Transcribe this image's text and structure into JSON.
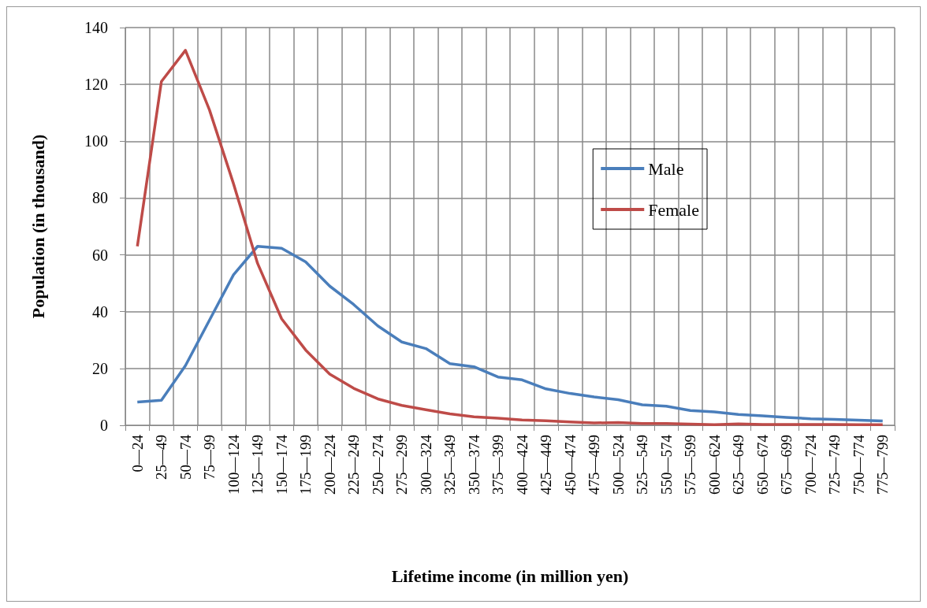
{
  "chart_data": {
    "type": "line",
    "xlabel": "Lifetime income (in million yen)",
    "ylabel": "Population (in thousand)",
    "categories": [
      "0—24",
      "25—49",
      "50—74",
      "75—99",
      "100—124",
      "125—149",
      "150—174",
      "175—199",
      "200—224",
      "225—249",
      "250—274",
      "275—299",
      "300—324",
      "325—349",
      "350—374",
      "375—399",
      "400—424",
      "425—449",
      "450—474",
      "475—499",
      "500—524",
      "525—549",
      "550—574",
      "575—599",
      "600—624",
      "625—649",
      "650—674",
      "675—699",
      "700—724",
      "725—749",
      "750—774",
      "775—799"
    ],
    "series": [
      {
        "name": "Male",
        "color": "#4a7ebb",
        "values": [
          8.2,
          8.8,
          21,
          37,
          53,
          63,
          62.3,
          57.5,
          49,
          42.5,
          35,
          29.3,
          27,
          21.7,
          20.6,
          17,
          16,
          12.8,
          11.2,
          10,
          9,
          7.2,
          6.7,
          5.2,
          4.7,
          3.8,
          3.3,
          2.8,
          2.3,
          2.1,
          1.8,
          1.5
        ]
      },
      {
        "name": "Female",
        "color": "#be4b48",
        "values": [
          63,
          121,
          132,
          111,
          85,
          57,
          37.5,
          26.5,
          18,
          13,
          9.3,
          7,
          5.5,
          4,
          3,
          2.5,
          1.9,
          1.6,
          1.2,
          0.8,
          1,
          0.6,
          0.6,
          0.4,
          0.2,
          0.5,
          0.3,
          0.3,
          0.3,
          0.3,
          0.2,
          0.2
        ]
      }
    ],
    "ylim": [
      0,
      140
    ],
    "yticks": [
      0,
      20,
      40,
      60,
      80,
      100,
      120,
      140
    ],
    "grid": true,
    "legend": "right",
    "marker": "none",
    "line_style": "solid"
  }
}
